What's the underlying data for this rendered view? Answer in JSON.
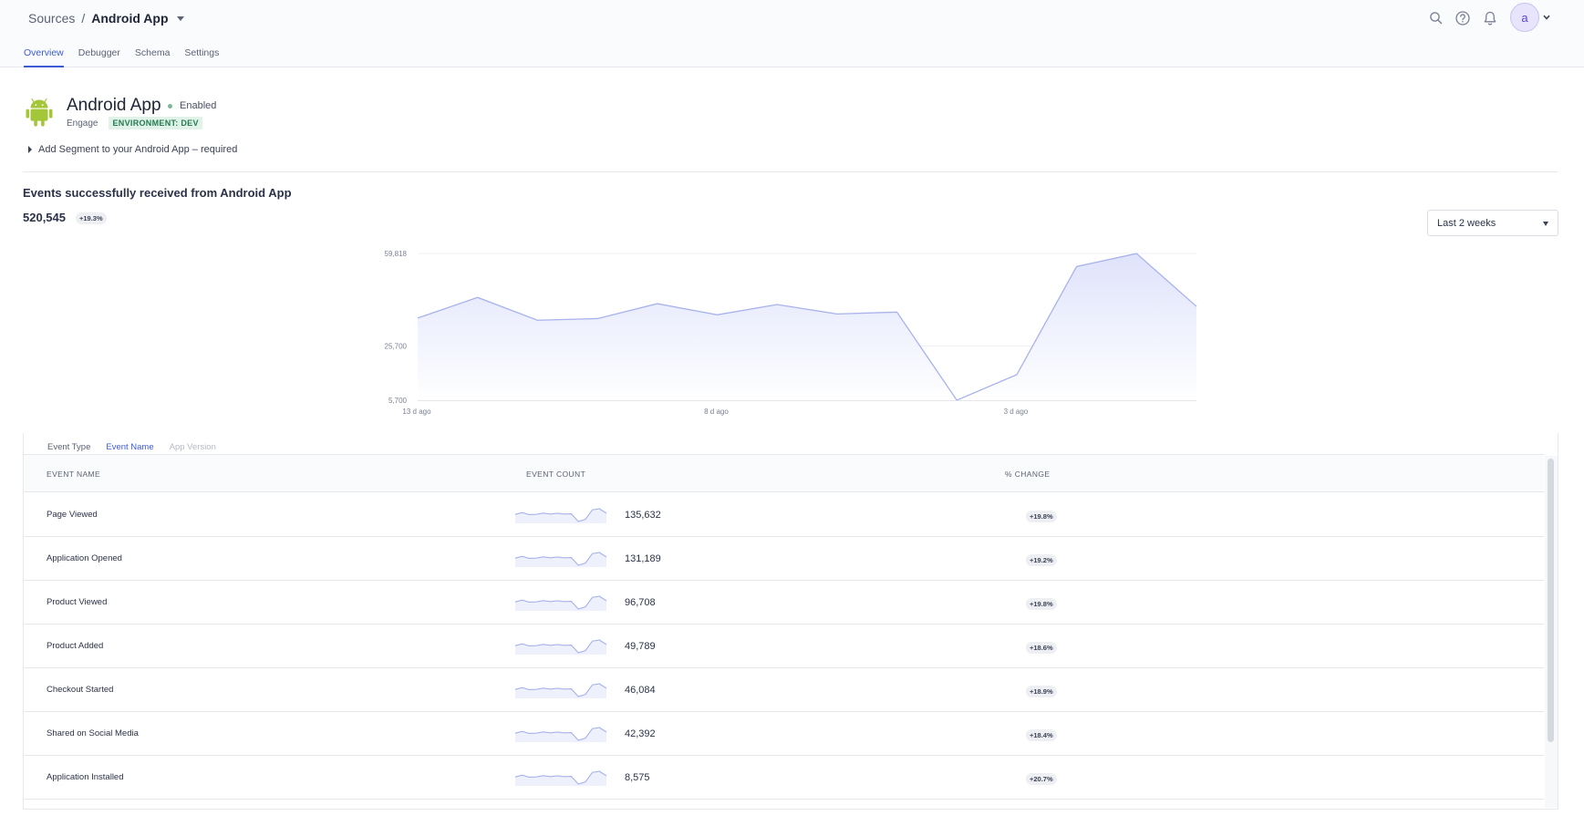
{
  "breadcrumb": {
    "root": "Sources",
    "separator": "/",
    "current": "Android App"
  },
  "header_icons": [
    "search-icon",
    "help-icon",
    "bell-icon"
  ],
  "user": {
    "avatar_initial": "a"
  },
  "tabs": [
    {
      "label": "Overview",
      "active": true
    },
    {
      "label": "Debugger",
      "active": false
    },
    {
      "label": "Schema",
      "active": false
    },
    {
      "label": "Settings",
      "active": false
    }
  ],
  "source": {
    "name": "Android App",
    "status": "Enabled",
    "kind": "Engage",
    "environment_badge": "ENVIRONMENT: DEV",
    "setup_link": "Add Segment to your Android App – required",
    "status_color": "#7fb69a",
    "logo_color": "#a4c639"
  },
  "summary": {
    "title": "Events successfully received from Android App",
    "total": "520,545",
    "change": "+19.3%"
  },
  "range_select": {
    "value": "Last 2 weeks"
  },
  "chart_data": {
    "type": "area",
    "title": "",
    "xlabel": "",
    "ylabel": "",
    "y_ticks": [
      "59,818",
      "25,700",
      "5,700"
    ],
    "x_ticks": [
      {
        "label": "13 d ago",
        "index": 0
      },
      {
        "label": "8 d ago",
        "index": 5
      },
      {
        "label": "3 d ago",
        "index": 10
      }
    ],
    "ylim": [
      5700,
      59818
    ],
    "x": [
      0,
      1,
      2,
      3,
      4,
      5,
      6,
      7,
      8,
      9,
      10,
      11,
      12,
      13
    ],
    "series": [
      {
        "values": [
          36000,
          43600,
          35200,
          35800,
          41300,
          37200,
          41000,
          37500,
          38200,
          5700,
          15100,
          55000,
          59800,
          40300
        ]
      }
    ],
    "line_color": "#a8b2ec",
    "fill_color": "#e2e6fb"
  },
  "breakdown_tabs": [
    {
      "label": "Event Type",
      "state": "normal"
    },
    {
      "label": "Event Name",
      "state": "active"
    },
    {
      "label": "App Version",
      "state": "disabled"
    }
  ],
  "table": {
    "columns": [
      "EVENT NAME",
      "EVENT COUNT",
      "% CHANGE"
    ],
    "rows": [
      {
        "name": "Page Viewed",
        "count": "135,632",
        "change": "+19.8%"
      },
      {
        "name": "Application Opened",
        "count": "131,189",
        "change": "+19.2%"
      },
      {
        "name": "Product Viewed",
        "count": "96,708",
        "change": "+19.8%"
      },
      {
        "name": "Product Added",
        "count": "49,789",
        "change": "+18.6%"
      },
      {
        "name": "Checkout Started",
        "count": "46,084",
        "change": "+18.9%"
      },
      {
        "name": "Shared on Social Media",
        "count": "42,392",
        "change": "+18.4%"
      },
      {
        "name": "Application Installed",
        "count": "8,575",
        "change": "+20.7%"
      }
    ]
  }
}
